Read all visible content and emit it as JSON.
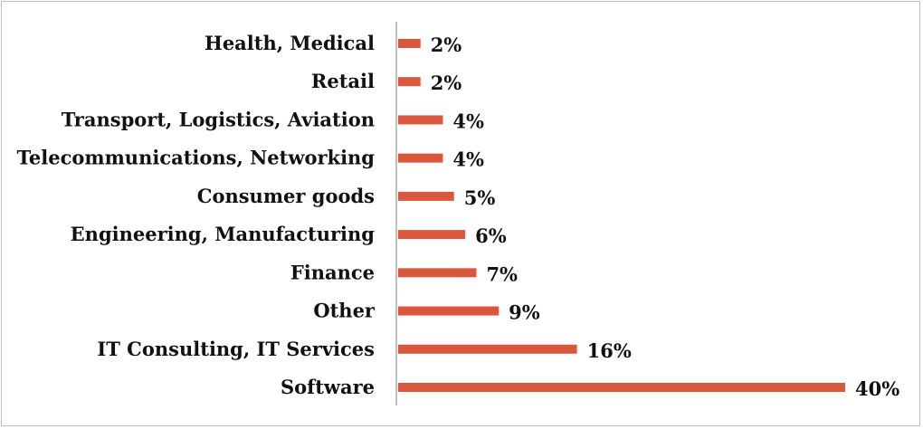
{
  "chart_data": {
    "type": "bar",
    "orientation": "horizontal",
    "categories": [
      "Health, Medical",
      "Retail",
      "Transport, Logistics, Aviation",
      "Telecommunications, Networking",
      "Consumer goods",
      "Engineering, Manufacturing",
      "Finance",
      "Other",
      "IT Consulting, IT Services",
      "Software"
    ],
    "values": [
      2,
      2,
      4,
      4,
      5,
      6,
      7,
      9,
      16,
      40
    ],
    "value_labels": [
      "2%",
      "2%",
      "4%",
      "4%",
      "5%",
      "6%",
      "7%",
      "9%",
      "16%",
      "40%"
    ],
    "bar_color": "#d9573c",
    "axis_color": "#bfbfbf",
    "xlim": [
      0,
      40
    ],
    "grid": false,
    "legend": "none"
  }
}
